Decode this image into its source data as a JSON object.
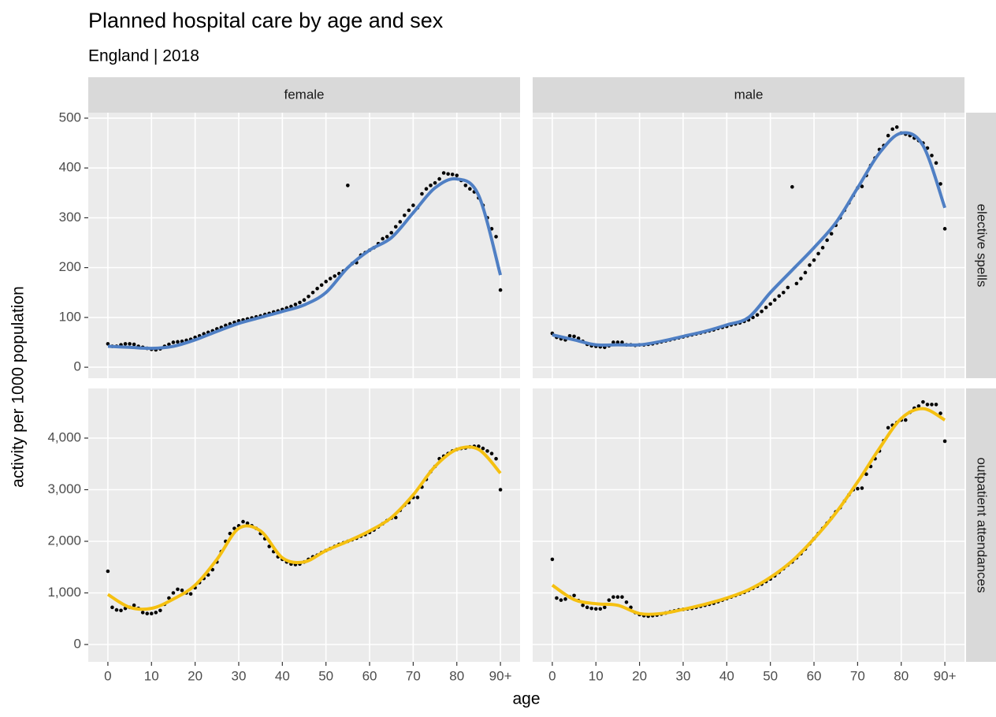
{
  "chart_data": {
    "type": "scatter",
    "title": "Planned hospital care by age and sex",
    "subtitle": "England | 2018",
    "xlabel": "age",
    "ylabel": "activity per 1000 population",
    "columns": [
      "female",
      "male"
    ],
    "x": [
      0,
      1,
      2,
      3,
      4,
      5,
      6,
      7,
      8,
      9,
      10,
      11,
      12,
      13,
      14,
      15,
      16,
      17,
      18,
      19,
      20,
      21,
      22,
      23,
      24,
      25,
      26,
      27,
      28,
      29,
      30,
      31,
      32,
      33,
      34,
      35,
      36,
      37,
      38,
      39,
      40,
      41,
      42,
      43,
      44,
      45,
      46,
      47,
      48,
      49,
      50,
      51,
      52,
      53,
      54,
      55,
      56,
      57,
      58,
      59,
      60,
      61,
      62,
      63,
      64,
      65,
      66,
      67,
      68,
      69,
      70,
      71,
      72,
      73,
      74,
      75,
      76,
      77,
      78,
      79,
      80,
      81,
      82,
      83,
      84,
      85,
      86,
      87,
      88,
      89,
      90
    ],
    "smooth_x": [
      0,
      5,
      10,
      15,
      20,
      25,
      30,
      35,
      40,
      45,
      50,
      55,
      60,
      65,
      70,
      75,
      80,
      85,
      90
    ],
    "xlim": [
      -4.5,
      94.5
    ],
    "xticks": [
      0,
      10,
      20,
      30,
      40,
      50,
      60,
      70,
      80,
      {
        "value": 90,
        "label": "90+"
      }
    ],
    "point_color": "#000000",
    "grid": true,
    "rows": [
      {
        "label": "elective spells",
        "color": "#4f7fc4",
        "ylim": [
          -22,
          511
        ],
        "yticks": [
          0,
          100,
          200,
          300,
          400,
          500
        ],
        "panels": [
          {
            "values": [
              47,
              42,
              42,
              45,
              47,
              47,
              46,
              42,
              40,
              38,
              36,
              35,
              37,
              42,
              46,
              50,
              51,
              52,
              54,
              56,
              60,
              63,
              67,
              70,
              73,
              77,
              80,
              84,
              87,
              90,
              93,
              95,
              97,
              99,
              101,
              103,
              106,
              108,
              111,
              113,
              116,
              119,
              122,
              126,
              130,
              135,
              142,
              150,
              158,
              165,
              172,
              178,
              183,
              188,
              193,
              365,
              208,
              210,
              225,
              230,
              235,
              240,
              248,
              258,
              262,
              270,
              282,
              292,
              305,
              315,
              325,
              320,
              348,
              358,
              365,
              370,
              378,
              390,
              388,
              387,
              385,
              375,
              365,
              358,
              352,
              340,
              325,
              300,
              278,
              262,
              155
            ],
            "smooth": [
              42,
              40,
              38,
              42,
              55,
              72,
              88,
              100,
              112,
              125,
              150,
              200,
              235,
              260,
              310,
              360,
              378,
              345,
              185
            ]
          },
          {
            "values": [
              68,
              60,
              57,
              55,
              63,
              62,
              58,
              52,
              46,
              43,
              42,
              41,
              40,
              43,
              50,
              50,
              50,
              45,
              45,
              44,
              45,
              45,
              46,
              47,
              49,
              51,
              53,
              55,
              57,
              59,
              61,
              63,
              65,
              67,
              69,
              71,
              73,
              75,
              78,
              80,
              82,
              85,
              87,
              89,
              92,
              95,
              100,
              105,
              112,
              120,
              127,
              135,
              143,
              150,
              160,
              362,
              168,
              178,
              190,
              205,
              215,
              228,
              240,
              255,
              268,
              285,
              300,
              315,
              330,
              345,
              360,
              363,
              385,
              405,
              420,
              437,
              445,
              465,
              478,
              482,
              470,
              468,
              465,
              460,
              455,
              450,
              440,
              425,
              410,
              368,
              278
            ],
            "smooth": [
              65,
              55,
              45,
              45,
              45,
              52,
              62,
              72,
              85,
              100,
              150,
              195,
              240,
              290,
              360,
              430,
              470,
              445,
              320
            ]
          }
        ]
      },
      {
        "label": "outpatient attendances",
        "color": "#f5c010",
        "ylim": [
          -336,
          4962
        ],
        "yticks": [
          0,
          {
            "value": 1000,
            "label": "1,000"
          },
          {
            "value": 2000,
            "label": "2,000"
          },
          {
            "value": 3000,
            "label": "3,000"
          },
          {
            "value": 4000,
            "label": "4,000"
          }
        ],
        "panels": [
          {
            "values": [
              1420,
              720,
              670,
              660,
              700,
              720,
              760,
              700,
              620,
              600,
              600,
              620,
              660,
              780,
              900,
              1000,
              1070,
              1050,
              1000,
              980,
              1100,
              1200,
              1280,
              1350,
              1450,
              1600,
              1800,
              2000,
              2150,
              2250,
              2300,
              2380,
              2350,
              2300,
              2250,
              2150,
              2050,
              1900,
              1800,
              1700,
              1650,
              1600,
              1560,
              1550,
              1560,
              1600,
              1650,
              1700,
              1730,
              1780,
              1820,
              1860,
              1900,
              1940,
              1970,
              2000,
              2030,
              2060,
              2100,
              2130,
              2170,
              2220,
              2280,
              2340,
              2400,
              2450,
              2460,
              2600,
              2700,
              2750,
              2850,
              2850,
              3050,
              3200,
              3350,
              3450,
              3600,
              3650,
              3700,
              3750,
              3780,
              3800,
              3810,
              3830,
              3840,
              3840,
              3800,
              3750,
              3700,
              3600,
              3000
            ],
            "smooth": [
              970,
              720,
              700,
              880,
              1150,
              1650,
              2250,
              2200,
              1680,
              1600,
              1820,
              2000,
              2200,
              2460,
              2900,
              3450,
              3780,
              3780,
              3320
            ]
          },
          {
            "values": [
              1650,
              900,
              860,
              880,
              920,
              950,
              850,
              760,
              720,
              700,
              690,
              690,
              720,
              860,
              920,
              920,
              920,
              820,
              720,
              620,
              580,
              560,
              550,
              560,
              570,
              590,
              610,
              630,
              650,
              670,
              680,
              690,
              700,
              720,
              740,
              760,
              780,
              800,
              830,
              860,
              890,
              920,
              950,
              980,
              1010,
              1050,
              1090,
              1130,
              1170,
              1220,
              1270,
              1330,
              1400,
              1470,
              1540,
              1600,
              1680,
              1760,
              1850,
              1950,
              2050,
              2150,
              2250,
              2350,
              2450,
              2570,
              2650,
              2780,
              2900,
              3000,
              3020,
              3030,
              3300,
              3450,
              3600,
              3750,
              3950,
              4200,
              4250,
              4300,
              4350,
              4350,
              4500,
              4580,
              4620,
              4700,
              4650,
              4650,
              4650,
              4480,
              3940
            ],
            "smooth": [
              1150,
              870,
              790,
              760,
              600,
              600,
              680,
              780,
              900,
              1060,
              1300,
              1620,
              2050,
              2550,
              3150,
              3800,
              4380,
              4570,
              4350
            ]
          }
        ]
      }
    ]
  }
}
